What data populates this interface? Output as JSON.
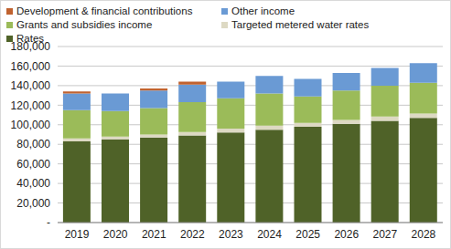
{
  "chart_data": {
    "type": "bar",
    "stacked": true,
    "grid": true,
    "legend": "top",
    "categories": [
      "2019",
      "2020",
      "2021",
      "2022",
      "2023",
      "2024",
      "2025",
      "2026",
      "2027",
      "2028"
    ],
    "ylim": [
      0,
      180000
    ],
    "yticks": [
      {
        "value": 0,
        "label": "-"
      },
      {
        "value": 20000,
        "label": "20,000"
      },
      {
        "value": 40000,
        "label": "40,000"
      },
      {
        "value": 60000,
        "label": "60,000"
      },
      {
        "value": 80000,
        "label": "80,000"
      },
      {
        "value": 100000,
        "label": "100,000"
      },
      {
        "value": 120000,
        "label": "120,000"
      },
      {
        "value": 140000,
        "label": "140,000"
      },
      {
        "value": 160000,
        "label": "160,000"
      },
      {
        "value": 180000,
        "label": "180,000"
      }
    ],
    "series": [
      {
        "name": "Rates",
        "color": "#4f6228",
        "values": [
          83000,
          85000,
          87000,
          89000,
          92000,
          95000,
          98000,
          101000,
          104000,
          107000
        ]
      },
      {
        "name": "Targeted metered water rates",
        "color": "#ddd9c3",
        "values": [
          3000,
          3000,
          3000,
          3500,
          4000,
          4000,
          4000,
          4000,
          4500,
          4500
        ]
      },
      {
        "name": "Grants and subsidies income",
        "color": "#9bbb59",
        "values": [
          29000,
          26000,
          27000,
          30500,
          31000,
          33000,
          27000,
          30000,
          31500,
          31500
        ]
      },
      {
        "name": "Other income",
        "color": "#6a9ad4",
        "values": [
          17000,
          18000,
          18000,
          18000,
          17000,
          18000,
          18000,
          18000,
          18000,
          20000
        ]
      },
      {
        "name": "Development & financial contributions",
        "color": "#c0622f",
        "values": [
          2000,
          0,
          2000,
          3000,
          0,
          0,
          0,
          0,
          0,
          0
        ]
      }
    ]
  }
}
